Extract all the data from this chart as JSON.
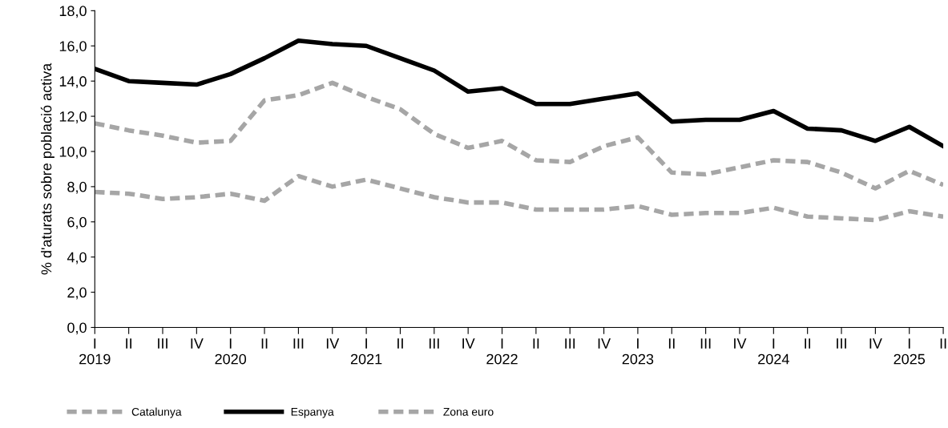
{
  "chart_data": {
    "type": "line",
    "ylabel": "% d'aturats sobre població activa",
    "categories": [
      "I\n2019",
      "II",
      "III",
      "IV",
      "I\n2020",
      "II",
      "III",
      "IV",
      "I\n2021",
      "II",
      "III",
      "IV",
      "I\n2022",
      "II",
      "III",
      "IV",
      "I\n2023",
      "II",
      "III",
      "IV",
      "I\n2024",
      "II",
      "III",
      "IV",
      "I\n2025",
      "II"
    ],
    "series": [
      {
        "name": "Catalunya",
        "color": "#a6a6a6",
        "line_style": "dashed",
        "values": [
          11.6,
          11.2,
          10.9,
          10.5,
          10.6,
          12.9,
          13.2,
          13.9,
          13.1,
          12.4,
          11.0,
          10.2,
          10.6,
          9.5,
          9.4,
          10.3,
          10.8,
          8.8,
          8.7,
          9.1,
          9.5,
          9.4,
          8.8,
          7.9,
          8.9,
          8.1
        ]
      },
      {
        "name": "Espanya",
        "color": "#000000",
        "line_style": "solid",
        "values": [
          14.7,
          14.0,
          13.9,
          13.8,
          14.4,
          15.3,
          16.3,
          16.1,
          16.0,
          15.3,
          14.6,
          13.4,
          13.6,
          12.7,
          12.7,
          13.0,
          13.3,
          11.7,
          11.8,
          11.8,
          12.3,
          11.3,
          11.2,
          10.6,
          11.4,
          10.3
        ]
      },
      {
        "name": "Zona euro",
        "color": "#a6a6a6",
        "line_style": "dashed",
        "values": [
          7.7,
          7.6,
          7.3,
          7.4,
          7.6,
          7.2,
          8.6,
          8.0,
          8.4,
          7.9,
          7.4,
          7.1,
          7.1,
          6.7,
          6.7,
          6.7,
          6.9,
          6.4,
          6.5,
          6.5,
          6.8,
          6.3,
          6.2,
          6.1,
          6.6,
          6.3
        ]
      }
    ],
    "ylim": [
      0,
      18
    ],
    "yticks": [
      {
        "value": 0,
        "label": "0,0"
      },
      {
        "value": 2,
        "label": "2,0"
      },
      {
        "value": 4,
        "label": "4,0"
      },
      {
        "value": 6,
        "label": "6,0"
      },
      {
        "value": 8,
        "label": "8,0"
      },
      {
        "value": 10,
        "label": "10,0"
      },
      {
        "value": 12,
        "label": "12,0"
      },
      {
        "value": 14,
        "label": "14,0"
      },
      {
        "value": 16,
        "label": "16,0"
      },
      {
        "value": 18,
        "label": "18,0"
      }
    ],
    "marker": "none",
    "legend": "bottom"
  }
}
